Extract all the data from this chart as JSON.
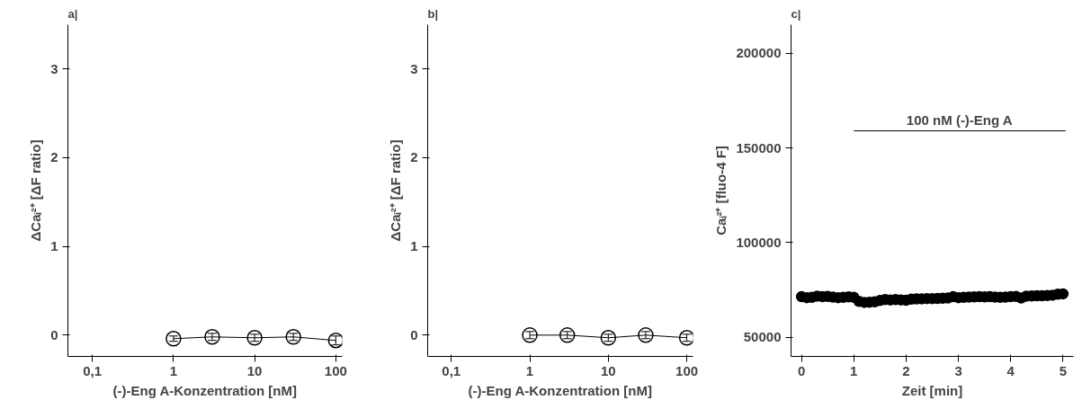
{
  "chart_data": [
    {
      "type": "line",
      "title": "a|",
      "xlabel": "(-)-Eng A-Konzentration [nM]",
      "ylabel": "ΔCaᵢ²⁺ [ΔF ratio]",
      "log": "x",
      "xlim": [
        0.05,
        120
      ],
      "xticks": [
        {
          "value": 0.1,
          "label": "0,1"
        },
        1,
        10,
        100
      ],
      "ylim": [
        -0.24,
        3.5
      ],
      "yticks": [
        0,
        1,
        2,
        3
      ],
      "grid": false,
      "marker": "circle",
      "line_style": "solid",
      "x": [
        1,
        3,
        10,
        30,
        100
      ],
      "series": [
        {
          "color": "#000000",
          "values": [
            -0.04,
            -0.02,
            -0.03,
            -0.02,
            -0.06
          ],
          "errors": [
            0.03,
            0.04,
            0.04,
            0.04,
            0.05
          ]
        }
      ]
    },
    {
      "type": "line",
      "title": "b|",
      "xlabel": "(-)-Eng A-Konzentration [nM]",
      "ylabel": "ΔCaᵢ²⁺ [ΔF ratio]",
      "log": "x",
      "xlim": [
        0.05,
        120
      ],
      "xticks": [
        {
          "value": 0.1,
          "label": "0,1"
        },
        1,
        10,
        100
      ],
      "ylim": [
        -0.24,
        3.5
      ],
      "yticks": [
        0,
        1,
        2,
        3
      ],
      "grid": false,
      "marker": "circle",
      "line_style": "solid",
      "x": [
        1,
        3,
        10,
        30,
        100
      ],
      "series": [
        {
          "color": "#000000",
          "values": [
            0.0,
            0.0,
            -0.03,
            0.0,
            -0.03
          ],
          "errors": [
            0.04,
            0.04,
            0.04,
            0.04,
            0.04
          ]
        }
      ]
    },
    {
      "type": "scatter",
      "title": "c|",
      "xlabel": "Zeit [min]",
      "ylabel": "Caᵢ²⁺ [fluo-4 F]",
      "xlim": [
        -0.2,
        5.2
      ],
      "xticks": [
        0,
        1,
        2,
        3,
        4,
        5
      ],
      "ylim": [
        40000,
        215000
      ],
      "yticks": [
        50000,
        100000,
        150000,
        200000
      ],
      "grid": false,
      "marker": "circle",
      "x": [
        0,
        0.1,
        0.2,
        0.3,
        0.4,
        0.5,
        0.6,
        0.7,
        0.8,
        0.9,
        1.0,
        1.1,
        1.2,
        1.3,
        1.4,
        1.5,
        1.6,
        1.7,
        1.8,
        1.9,
        2.0,
        2.1,
        2.2,
        2.3,
        2.4,
        2.5,
        2.6,
        2.7,
        2.8,
        2.9,
        3.0,
        3.1,
        3.2,
        3.3,
        3.4,
        3.5,
        3.6,
        3.7,
        3.8,
        3.9,
        4.0,
        4.1,
        4.2,
        4.3,
        4.4,
        4.5,
        4.6,
        4.7,
        4.8,
        4.9,
        5.0
      ],
      "series": [
        {
          "color": "#000000",
          "values": [
            71500,
            71000,
            71200,
            71800,
            71500,
            71600,
            71300,
            71000,
            71200,
            71400,
            71200,
            69000,
            68500,
            68600,
            68800,
            69500,
            70000,
            69800,
            70000,
            69800,
            69600,
            70200,
            70300,
            70400,
            70500,
            70500,
            70600,
            70700,
            70800,
            71500,
            71000,
            71200,
            71300,
            71400,
            71500,
            71400,
            71500,
            71300,
            71200,
            71300,
            71500,
            71600,
            70800,
            71800,
            71900,
            72000,
            72000,
            72100,
            72300,
            72800,
            73000
          ]
        },
        {
          "type": "line",
          "name": "100 nM (-)-Eng A",
          "marker": "none",
          "color": "#000000",
          "x": [
            1,
            5.05
          ],
          "values": [
            159000,
            159000
          ]
        }
      ]
    }
  ]
}
